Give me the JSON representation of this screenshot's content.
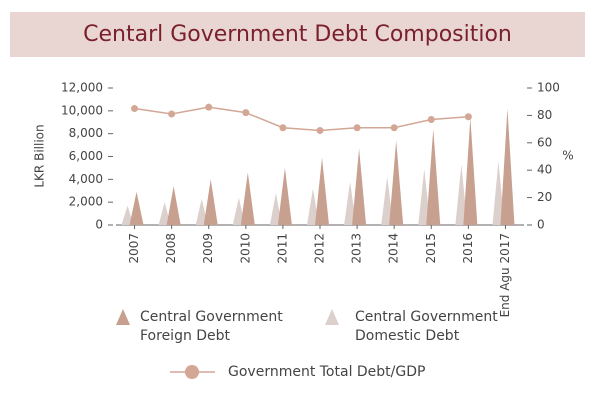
{
  "chart_data": {
    "type": "spike",
    "title": "Centarl Government Debt Composition",
    "y_label": "LKR Billion",
    "y2_label": "%",
    "categories": [
      "2007",
      "2008",
      "2009",
      "2010",
      "2011",
      "2012",
      "2013",
      "2014",
      "2015",
      "2016",
      "End Agu 2017"
    ],
    "series": [
      {
        "name": "Central Government Foreign Debt",
        "color": "#c8a08f",
        "values": [
          2900,
          3400,
          4000,
          4600,
          5000,
          5900,
          6700,
          7400,
          8400,
          9400,
          10200
        ]
      },
      {
        "name": "Central Government Domestic Debt",
        "color": "#dcd0cd",
        "values": [
          1700,
          2000,
          2300,
          2400,
          2800,
          3200,
          3800,
          4200,
          4900,
          5300,
          5600
        ]
      },
      {
        "name": "Government Total Debt/GDP",
        "color": "#d3a796",
        "axis": "y2",
        "values": [
          85,
          81,
          86,
          82,
          71,
          69,
          71,
          71,
          77,
          79,
          null
        ]
      }
    ],
    "ylim": [
      0,
      12000
    ],
    "yticks": [
      0,
      {
        "value": 2000,
        "label": "2,000"
      },
      {
        "value": 4000,
        "label": "4,000"
      },
      {
        "value": 6000,
        "label": "6,000"
      },
      {
        "value": 8000,
        "label": "8,000"
      },
      {
        "value": 10000,
        "label": "10,000"
      },
      {
        "value": 12000,
        "label": "12,000"
      }
    ],
    "y2lim": [
      0,
      100
    ],
    "y2ticks": [
      0,
      20,
      40,
      60,
      80,
      100
    ],
    "grid": false
  }
}
